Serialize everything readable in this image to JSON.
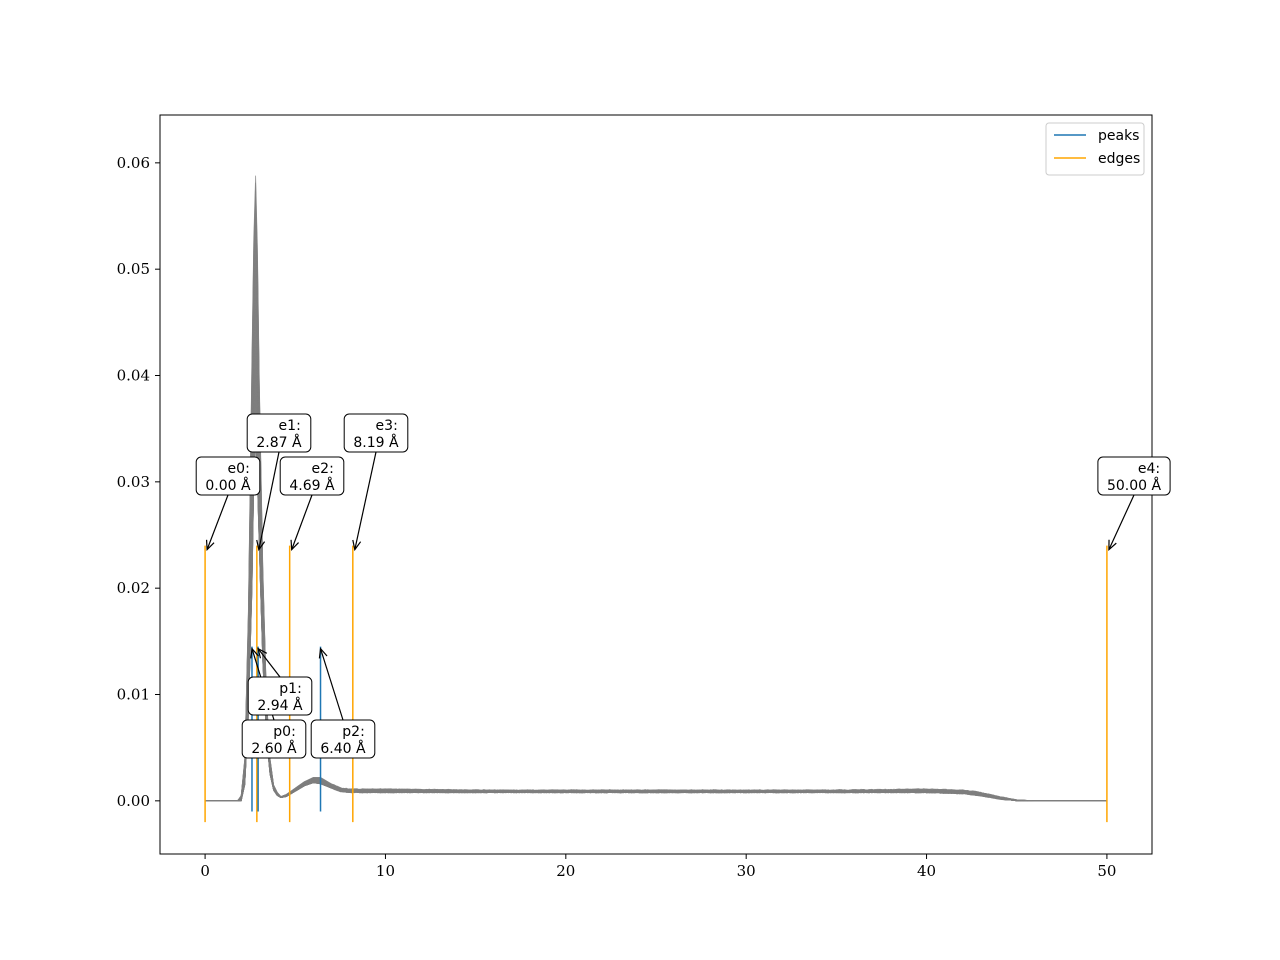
{
  "chart_data": {
    "type": "line",
    "title": "",
    "xlabel": "",
    "ylabel": "",
    "xlim": [
      -2.5,
      52.5
    ],
    "ylim": [
      -0.005,
      0.0645
    ],
    "xticks": [
      0,
      10,
      20,
      30,
      40,
      50
    ],
    "yticks": [
      0.0,
      0.01,
      0.02,
      0.03,
      0.04,
      0.05,
      0.06
    ],
    "xtick_labels": [
      "0",
      "10",
      "20",
      "30",
      "40",
      "50"
    ],
    "ytick_labels": [
      "0.00",
      "0.01",
      "0.02",
      "0.03",
      "0.04",
      "0.05",
      "0.06"
    ],
    "grid": false,
    "legend": {
      "placement": "top-right",
      "entries": [
        {
          "label": "peaks",
          "color": "#1f77b4"
        },
        {
          "label": "edges",
          "color": "#ffa500"
        }
      ]
    },
    "curves": {
      "color": "#808080",
      "count": 60,
      "x": [
        0,
        1.5,
        1.8,
        2.0,
        2.2,
        2.4,
        2.6,
        2.7,
        2.8,
        2.9,
        3.0,
        3.2,
        3.4,
        3.6,
        3.8,
        4.0,
        4.2,
        4.5,
        5.0,
        5.5,
        6.0,
        6.4,
        7.0,
        7.5,
        8.0,
        9.0,
        10,
        15,
        20,
        25,
        30,
        35,
        40,
        42,
        43,
        44,
        45,
        46,
        50
      ],
      "y_envelope_max": [
        0,
        0,
        0,
        0.0005,
        0.004,
        0.018,
        0.042,
        0.053,
        0.0588,
        0.052,
        0.04,
        0.022,
        0.01,
        0.004,
        0.0015,
        0.0008,
        0.0004,
        0.0006,
        0.0012,
        0.0018,
        0.0022,
        0.0022,
        0.0016,
        0.0012,
        0.0011,
        0.0011,
        0.0011,
        0.001,
        0.001,
        0.001,
        0.001,
        0.001,
        0.0011,
        0.001,
        0.0008,
        0.0004,
        0.0001,
        0,
        0
      ],
      "y_envelope_min": [
        0,
        0,
        0,
        0,
        0.0015,
        0.008,
        0.02,
        0.03,
        0.034,
        0.03,
        0.024,
        0.013,
        0.006,
        0.0025,
        0.001,
        0.0005,
        0.0003,
        0.0004,
        0.0009,
        0.0014,
        0.0017,
        0.0016,
        0.0012,
        0.0009,
        0.0008,
        0.0008,
        0.0008,
        0.0008,
        0.0008,
        0.0008,
        0.0008,
        0.0008,
        0.0008,
        0.0007,
        0.0005,
        0.0002,
        0,
        0,
        0
      ]
    },
    "peaks": {
      "x": [
        2.6,
        2.94,
        6.4
      ],
      "ymin": -0.001,
      "ymax": 0.0145,
      "labels": [
        {
          "line1": "p0:",
          "line2": "2.60 Å"
        },
        {
          "line1": "p1:",
          "line2": "2.94 Å"
        },
        {
          "line1": "p2:",
          "line2": "6.40 Å"
        }
      ]
    },
    "edges": {
      "x": [
        0.0,
        2.87,
        4.69,
        8.19,
        50.0
      ],
      "ymin": -0.002,
      "ymax": 0.024,
      "labels": [
        {
          "line1": "e0:",
          "line2": "0.00 Å"
        },
        {
          "line1": "e1:",
          "line2": "2.87 Å"
        },
        {
          "line1": "e2:",
          "line2": "4.69 Å"
        },
        {
          "line1": "e3:",
          "line2": "8.19 Å"
        },
        {
          "line1": "e4:",
          "line2": "50.00 Å"
        }
      ]
    }
  }
}
